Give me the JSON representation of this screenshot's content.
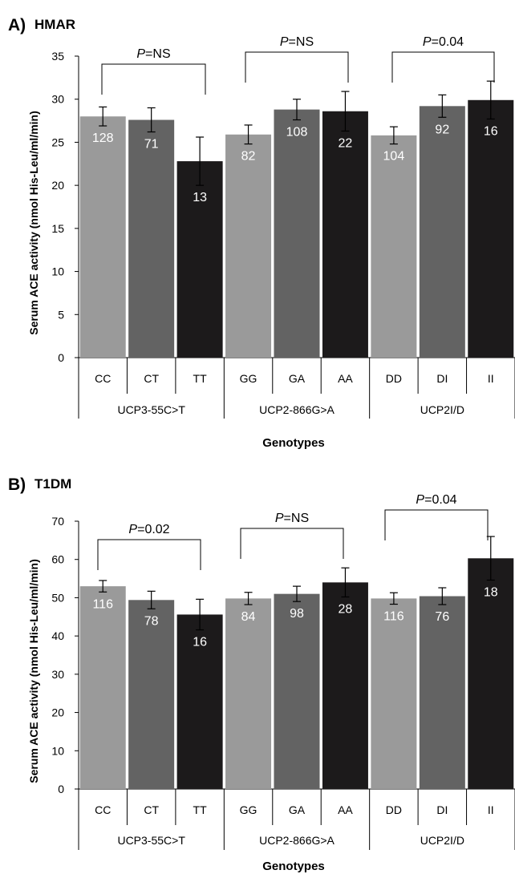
{
  "chart_data": [
    {
      "type": "bar",
      "panel_label": "A)",
      "title": "HMAR",
      "xlabel": "Genotypes",
      "ylabel": "Serum ACE activity (nmol His-Leu/ml/min)",
      "ylim": [
        0,
        35
      ],
      "yticks": [
        0,
        5,
        10,
        15,
        20,
        25,
        30,
        35
      ],
      "categories": [
        "CC",
        "CT",
        "TT",
        "GG",
        "GA",
        "AA",
        "DD",
        "DI",
        "II"
      ],
      "groups": [
        "UCP3-55C>T",
        "UCP2-866G>A",
        "UCP2I/D"
      ],
      "values": [
        28.0,
        27.6,
        22.8,
        25.9,
        28.8,
        28.6,
        25.8,
        29.2,
        29.9
      ],
      "errors": [
        1.1,
        1.4,
        2.8,
        1.1,
        1.2,
        2.3,
        1.0,
        1.3,
        2.2
      ],
      "n_labels": [
        "128",
        "71",
        "13",
        "82",
        "108",
        "22",
        "104",
        "92",
        "16"
      ],
      "p_values": [
        {
          "p": "P",
          "text": "=NS"
        },
        {
          "p": "P",
          "text": "=NS"
        },
        {
          "p": "P",
          "text": "=0.04"
        }
      ],
      "colors": [
        "#9a9a9a",
        "#636363",
        "#1c1a1b",
        "#9a9a9a",
        "#636363",
        "#1c1a1b",
        "#9a9a9a",
        "#636363",
        "#1c1a1b"
      ],
      "grid": false
    },
    {
      "type": "bar",
      "panel_label": "B)",
      "title": "T1DM",
      "xlabel": "Genotypes",
      "ylabel": "Serum ACE activity (nmol His-Leu/ml/min)",
      "ylim": [
        0,
        70
      ],
      "yticks": [
        0,
        10,
        20,
        30,
        40,
        50,
        60,
        70
      ],
      "categories": [
        "CC",
        "CT",
        "TT",
        "GG",
        "GA",
        "AA",
        "DD",
        "DI",
        "II"
      ],
      "groups": [
        "UCP3-55C>T",
        "UCP2-866G>A",
        "UCP2I/D"
      ],
      "values": [
        53.0,
        49.4,
        45.6,
        49.8,
        51.0,
        54.0,
        49.8,
        50.4,
        60.3
      ],
      "errors": [
        1.5,
        2.3,
        4.0,
        1.6,
        2.0,
        3.8,
        1.5,
        2.2,
        5.7
      ],
      "n_labels": [
        "116",
        "78",
        "16",
        "84",
        "98",
        "28",
        "116",
        "76",
        "18"
      ],
      "p_values": [
        {
          "p": "P",
          "text": "=0.02"
        },
        {
          "p": "P",
          "text": "=NS"
        },
        {
          "p": "P",
          "text": "=0.04"
        }
      ],
      "colors": [
        "#9a9a9a",
        "#636363",
        "#1c1a1b",
        "#9a9a9a",
        "#636363",
        "#1c1a1b",
        "#9a9a9a",
        "#636363",
        "#1c1a1b"
      ],
      "grid": false
    }
  ]
}
